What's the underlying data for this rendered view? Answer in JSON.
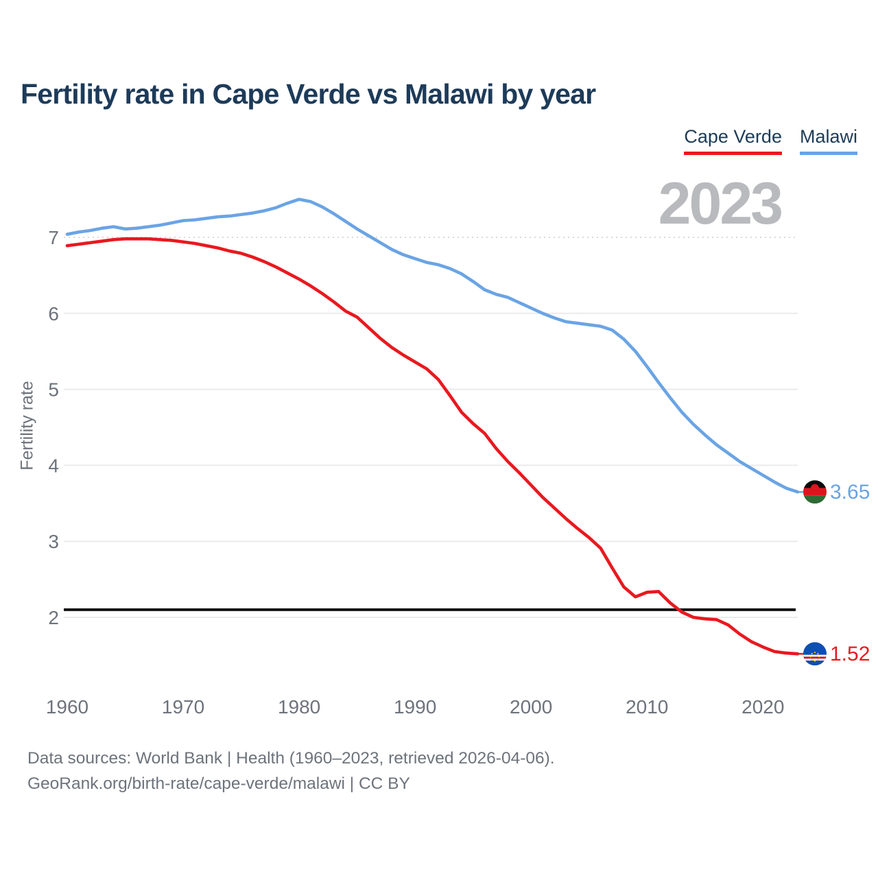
{
  "title": "Fertility rate in Cape Verde vs Malawi by year",
  "legend": [
    {
      "label": "Cape Verde",
      "color": "#e8191f"
    },
    {
      "label": "Malawi",
      "color": "#6aa4e4"
    }
  ],
  "watermark": "2023",
  "y_axis": {
    "label": "Fertility rate",
    "ticks": [
      2,
      3,
      4,
      5,
      6,
      7
    ]
  },
  "x_axis": {
    "ticks": [
      1960,
      1970,
      1980,
      1990,
      2000,
      2010,
      2020
    ]
  },
  "reference_line": {
    "value": 2.1,
    "color": "#111111"
  },
  "end_labels": {
    "malawi": "3.65",
    "cape_verde": "1.52"
  },
  "footer": {
    "line1": "Data sources: World Bank | Health (1960–2023, retrieved 2026-04-06).",
    "line2": "GeoRank.org/birth-rate/cape-verde/malawi | CC BY"
  },
  "chart_data": {
    "type": "line",
    "title": "Fertility rate in Cape Verde vs Malawi by year",
    "xlabel": "",
    "ylabel": "Fertility rate",
    "ylim": [
      1.3,
      7.8
    ],
    "xlim": [
      1959,
      2024
    ],
    "grid": true,
    "legend_position": "top-right",
    "reference_line_y": 2.1,
    "x": [
      1960,
      1961,
      1962,
      1963,
      1964,
      1965,
      1966,
      1967,
      1968,
      1969,
      1970,
      1971,
      1972,
      1973,
      1974,
      1975,
      1976,
      1977,
      1978,
      1979,
      1980,
      1981,
      1982,
      1983,
      1984,
      1985,
      1986,
      1987,
      1988,
      1989,
      1990,
      1991,
      1992,
      1993,
      1994,
      1995,
      1996,
      1997,
      1998,
      1999,
      2000,
      2001,
      2002,
      2003,
      2004,
      2005,
      2006,
      2007,
      2008,
      2009,
      2010,
      2011,
      2012,
      2013,
      2014,
      2015,
      2016,
      2017,
      2018,
      2019,
      2020,
      2021,
      2022,
      2023
    ],
    "series": [
      {
        "name": "Cape Verde",
        "color": "#e8191f",
        "end_value": 1.52,
        "values": [
          6.89,
          6.91,
          6.93,
          6.95,
          6.97,
          6.98,
          6.98,
          6.98,
          6.97,
          6.96,
          6.94,
          6.92,
          6.89,
          6.86,
          6.82,
          6.79,
          6.74,
          6.68,
          6.61,
          6.53,
          6.45,
          6.36,
          6.26,
          6.15,
          6.03,
          5.95,
          5.81,
          5.67,
          5.55,
          5.45,
          5.36,
          5.27,
          5.13,
          4.92,
          4.7,
          4.55,
          4.42,
          4.22,
          4.05,
          3.9,
          3.74,
          3.58,
          3.44,
          3.3,
          3.17,
          3.05,
          2.91,
          2.65,
          2.4,
          2.27,
          2.33,
          2.34,
          2.19,
          2.07,
          2.0,
          1.98,
          1.97,
          1.9,
          1.78,
          1.68,
          1.61,
          1.55,
          1.53,
          1.52
        ]
      },
      {
        "name": "Malawi",
        "color": "#6aa4e4",
        "end_value": 3.65,
        "values": [
          7.04,
          7.07,
          7.09,
          7.12,
          7.14,
          7.11,
          7.12,
          7.14,
          7.16,
          7.19,
          7.22,
          7.23,
          7.25,
          7.27,
          7.28,
          7.3,
          7.32,
          7.35,
          7.39,
          7.45,
          7.5,
          7.47,
          7.4,
          7.31,
          7.21,
          7.11,
          7.02,
          6.93,
          6.84,
          6.77,
          6.72,
          6.67,
          6.64,
          6.59,
          6.52,
          6.42,
          6.31,
          6.25,
          6.21,
          6.14,
          6.07,
          6.0,
          5.94,
          5.89,
          5.87,
          5.85,
          5.83,
          5.78,
          5.66,
          5.5,
          5.3,
          5.09,
          4.89,
          4.7,
          4.54,
          4.4,
          4.27,
          4.16,
          4.05,
          3.96,
          3.87,
          3.78,
          3.7,
          3.65
        ]
      }
    ]
  }
}
